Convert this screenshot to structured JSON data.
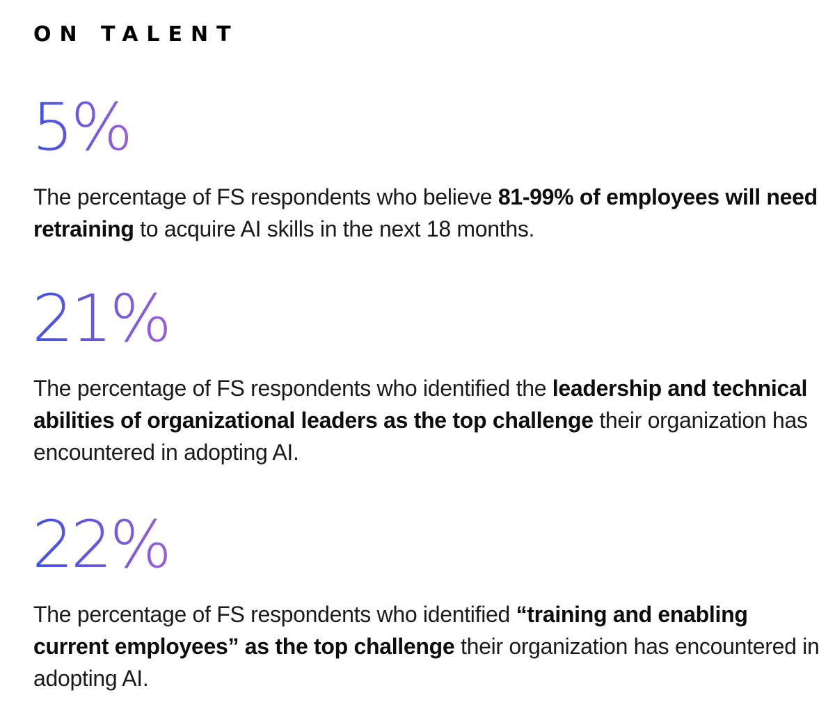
{
  "section": {
    "title": "ON TALENT"
  },
  "colors": {
    "gradient_start": "#3f51e6",
    "gradient_end": "#9b5fd8",
    "text": "#1a1a1a"
  },
  "stats": [
    {
      "value": "5%",
      "prefix": "The percentage of FS respondents who believe ",
      "highlight": "81-99% of employees will need retraining",
      "suffix": " to acquire AI skills in the next 18 months."
    },
    {
      "value": "21%",
      "prefix": "The percentage of FS respondents who identified the ",
      "highlight": "leadership and technical abilities of organizational leaders as the top challenge",
      "suffix": " their organization has encountered in adopting AI."
    },
    {
      "value": "22%",
      "prefix": "The percentage of FS respondents who identified ",
      "highlight": "“training and enabling current employees” as the top challenge",
      "suffix": " their organization has encountered in adopting AI."
    }
  ]
}
